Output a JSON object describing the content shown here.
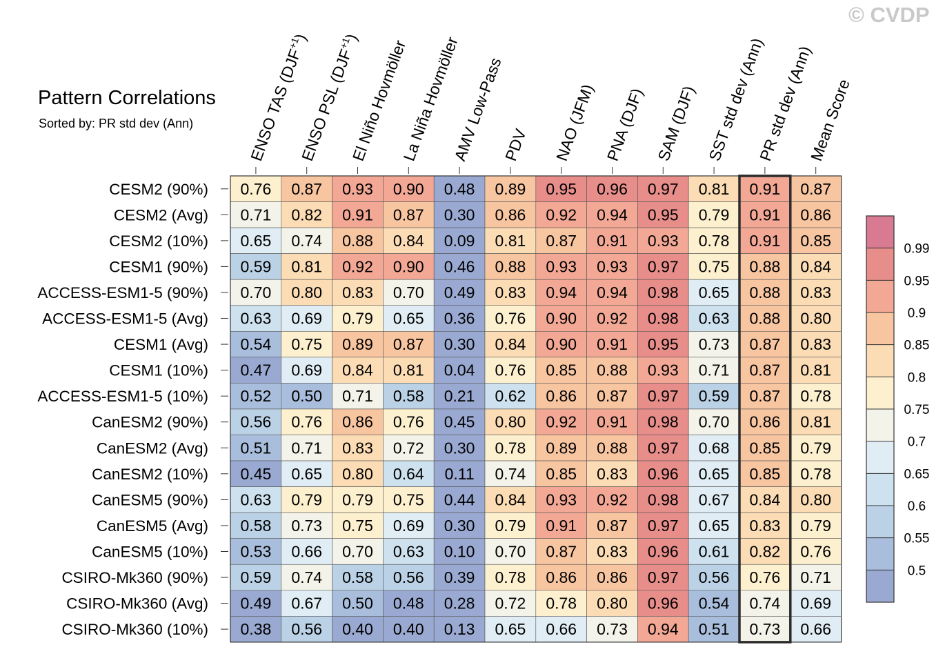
{
  "title": "Pattern Correlations",
  "subtitle": "Sorted by: PR std dev (Ann)",
  "watermark": "© CVDP",
  "chart_data": {
    "type": "heatmap",
    "columns": [
      {
        "base": "ENSO TAS (DJF",
        "sup": "+1",
        "tail": ")"
      },
      {
        "base": "ENSO PSL (DJF",
        "sup": "+1",
        "tail": ")"
      },
      {
        "base": "El Niño Hovmöller",
        "sup": "",
        "tail": ""
      },
      {
        "base": "La Niña Hovmöller",
        "sup": "",
        "tail": ""
      },
      {
        "base": "AMV Low-Pass",
        "sup": "",
        "tail": ""
      },
      {
        "base": "PDV",
        "sup": "",
        "tail": ""
      },
      {
        "base": "NAO (JFM)",
        "sup": "",
        "tail": ""
      },
      {
        "base": "PNA (DJF)",
        "sup": "",
        "tail": ""
      },
      {
        "base": "SAM (DJF)",
        "sup": "",
        "tail": ""
      },
      {
        "base": "SST std dev (Ann)",
        "sup": "",
        "tail": ""
      },
      {
        "base": "PR std dev (Ann)",
        "sup": "",
        "tail": ""
      },
      {
        "base": "Mean Score",
        "sup": "",
        "tail": ""
      }
    ],
    "rows": [
      "CESM2 (90%)",
      "CESM2 (Avg)",
      "CESM2 (10%)",
      "CESM1 (90%)",
      "ACCESS-ESM1-5 (90%)",
      "ACCESS-ESM1-5 (Avg)",
      "CESM1 (Avg)",
      "CESM1 (10%)",
      "ACCESS-ESM1-5 (10%)",
      "CanESM2 (90%)",
      "CanESM2 (Avg)",
      "CanESM2 (10%)",
      "CanESM5 (90%)",
      "CanESM5 (Avg)",
      "CanESM5 (10%)",
      "CSIRO-Mk360 (90%)",
      "CSIRO-Mk360 (Avg)",
      "CSIRO-Mk360 (10%)"
    ],
    "values": [
      [
        "0.76",
        "0.87",
        "0.93",
        "0.90",
        "0.48",
        "0.89",
        "0.95",
        "0.96",
        "0.97",
        "0.81",
        "0.91",
        "0.87"
      ],
      [
        "0.71",
        "0.82",
        "0.91",
        "0.87",
        "0.30",
        "0.86",
        "0.92",
        "0.94",
        "0.95",
        "0.79",
        "0.91",
        "0.86"
      ],
      [
        "0.65",
        "0.74",
        "0.88",
        "0.84",
        "0.09",
        "0.81",
        "0.87",
        "0.91",
        "0.93",
        "0.78",
        "0.91",
        "0.85"
      ],
      [
        "0.59",
        "0.81",
        "0.92",
        "0.90",
        "0.46",
        "0.88",
        "0.93",
        "0.93",
        "0.97",
        "0.75",
        "0.88",
        "0.84"
      ],
      [
        "0.70",
        "0.80",
        "0.83",
        "0.70",
        "0.49",
        "0.83",
        "0.94",
        "0.94",
        "0.98",
        "0.65",
        "0.88",
        "0.83"
      ],
      [
        "0.63",
        "0.69",
        "0.79",
        "0.65",
        "0.36",
        "0.76",
        "0.90",
        "0.92",
        "0.98",
        "0.63",
        "0.88",
        "0.80"
      ],
      [
        "0.54",
        "0.75",
        "0.89",
        "0.87",
        "0.30",
        "0.84",
        "0.90",
        "0.91",
        "0.95",
        "0.73",
        "0.87",
        "0.83"
      ],
      [
        "0.47",
        "0.69",
        "0.84",
        "0.81",
        "0.04",
        "0.76",
        "0.85",
        "0.88",
        "0.93",
        "0.71",
        "0.87",
        "0.81"
      ],
      [
        "0.52",
        "0.50",
        "0.71",
        "0.58",
        "0.21",
        "0.62",
        "0.86",
        "0.87",
        "0.97",
        "0.59",
        "0.87",
        "0.78"
      ],
      [
        "0.56",
        "0.76",
        "0.86",
        "0.76",
        "0.45",
        "0.80",
        "0.92",
        "0.91",
        "0.98",
        "0.70",
        "0.86",
        "0.81"
      ],
      [
        "0.51",
        "0.71",
        "0.83",
        "0.72",
        "0.30",
        "0.78",
        "0.89",
        "0.88",
        "0.97",
        "0.68",
        "0.85",
        "0.79"
      ],
      [
        "0.45",
        "0.65",
        "0.80",
        "0.64",
        "0.11",
        "0.74",
        "0.85",
        "0.83",
        "0.96",
        "0.65",
        "0.85",
        "0.78"
      ],
      [
        "0.63",
        "0.79",
        "0.79",
        "0.75",
        "0.44",
        "0.84",
        "0.93",
        "0.92",
        "0.98",
        "0.67",
        "0.84",
        "0.80"
      ],
      [
        "0.58",
        "0.73",
        "0.75",
        "0.69",
        "0.30",
        "0.79",
        "0.91",
        "0.87",
        "0.97",
        "0.65",
        "0.83",
        "0.79"
      ],
      [
        "0.53",
        "0.66",
        "0.70",
        "0.63",
        "0.10",
        "0.70",
        "0.87",
        "0.83",
        "0.96",
        "0.61",
        "0.82",
        "0.76"
      ],
      [
        "0.59",
        "0.74",
        "0.58",
        "0.56",
        "0.39",
        "0.78",
        "0.86",
        "0.86",
        "0.97",
        "0.56",
        "0.76",
        "0.71"
      ],
      [
        "0.49",
        "0.67",
        "0.50",
        "0.48",
        "0.28",
        "0.72",
        "0.78",
        "0.80",
        "0.96",
        "0.54",
        "0.74",
        "0.69"
      ],
      [
        "0.38",
        "0.56",
        "0.40",
        "0.40",
        "0.13",
        "0.65",
        "0.66",
        "0.73",
        "0.94",
        "0.51",
        "0.73",
        "0.66"
      ]
    ],
    "highlighted_column": "PR std dev (Ann)",
    "colorbar": {
      "levels": [
        0.5,
        0.55,
        0.6,
        0.65,
        0.7,
        0.75,
        0.8,
        0.85,
        0.9,
        0.95,
        0.99
      ],
      "labels": [
        "0.5",
        "0.55",
        "0.6",
        "0.65",
        "0.7",
        "0.75",
        "0.8",
        "0.85",
        "0.9",
        "0.95",
        "0.99"
      ],
      "colors": [
        "#9aa9d1",
        "#a9bedc",
        "#bbd2e6",
        "#cde1ee",
        "#e0edf4",
        "#f3f3e9",
        "#fdf0cf",
        "#fbdcb4",
        "#f8c5a1",
        "#f2a895",
        "#e78d8a",
        "#d77a92"
      ]
    }
  }
}
